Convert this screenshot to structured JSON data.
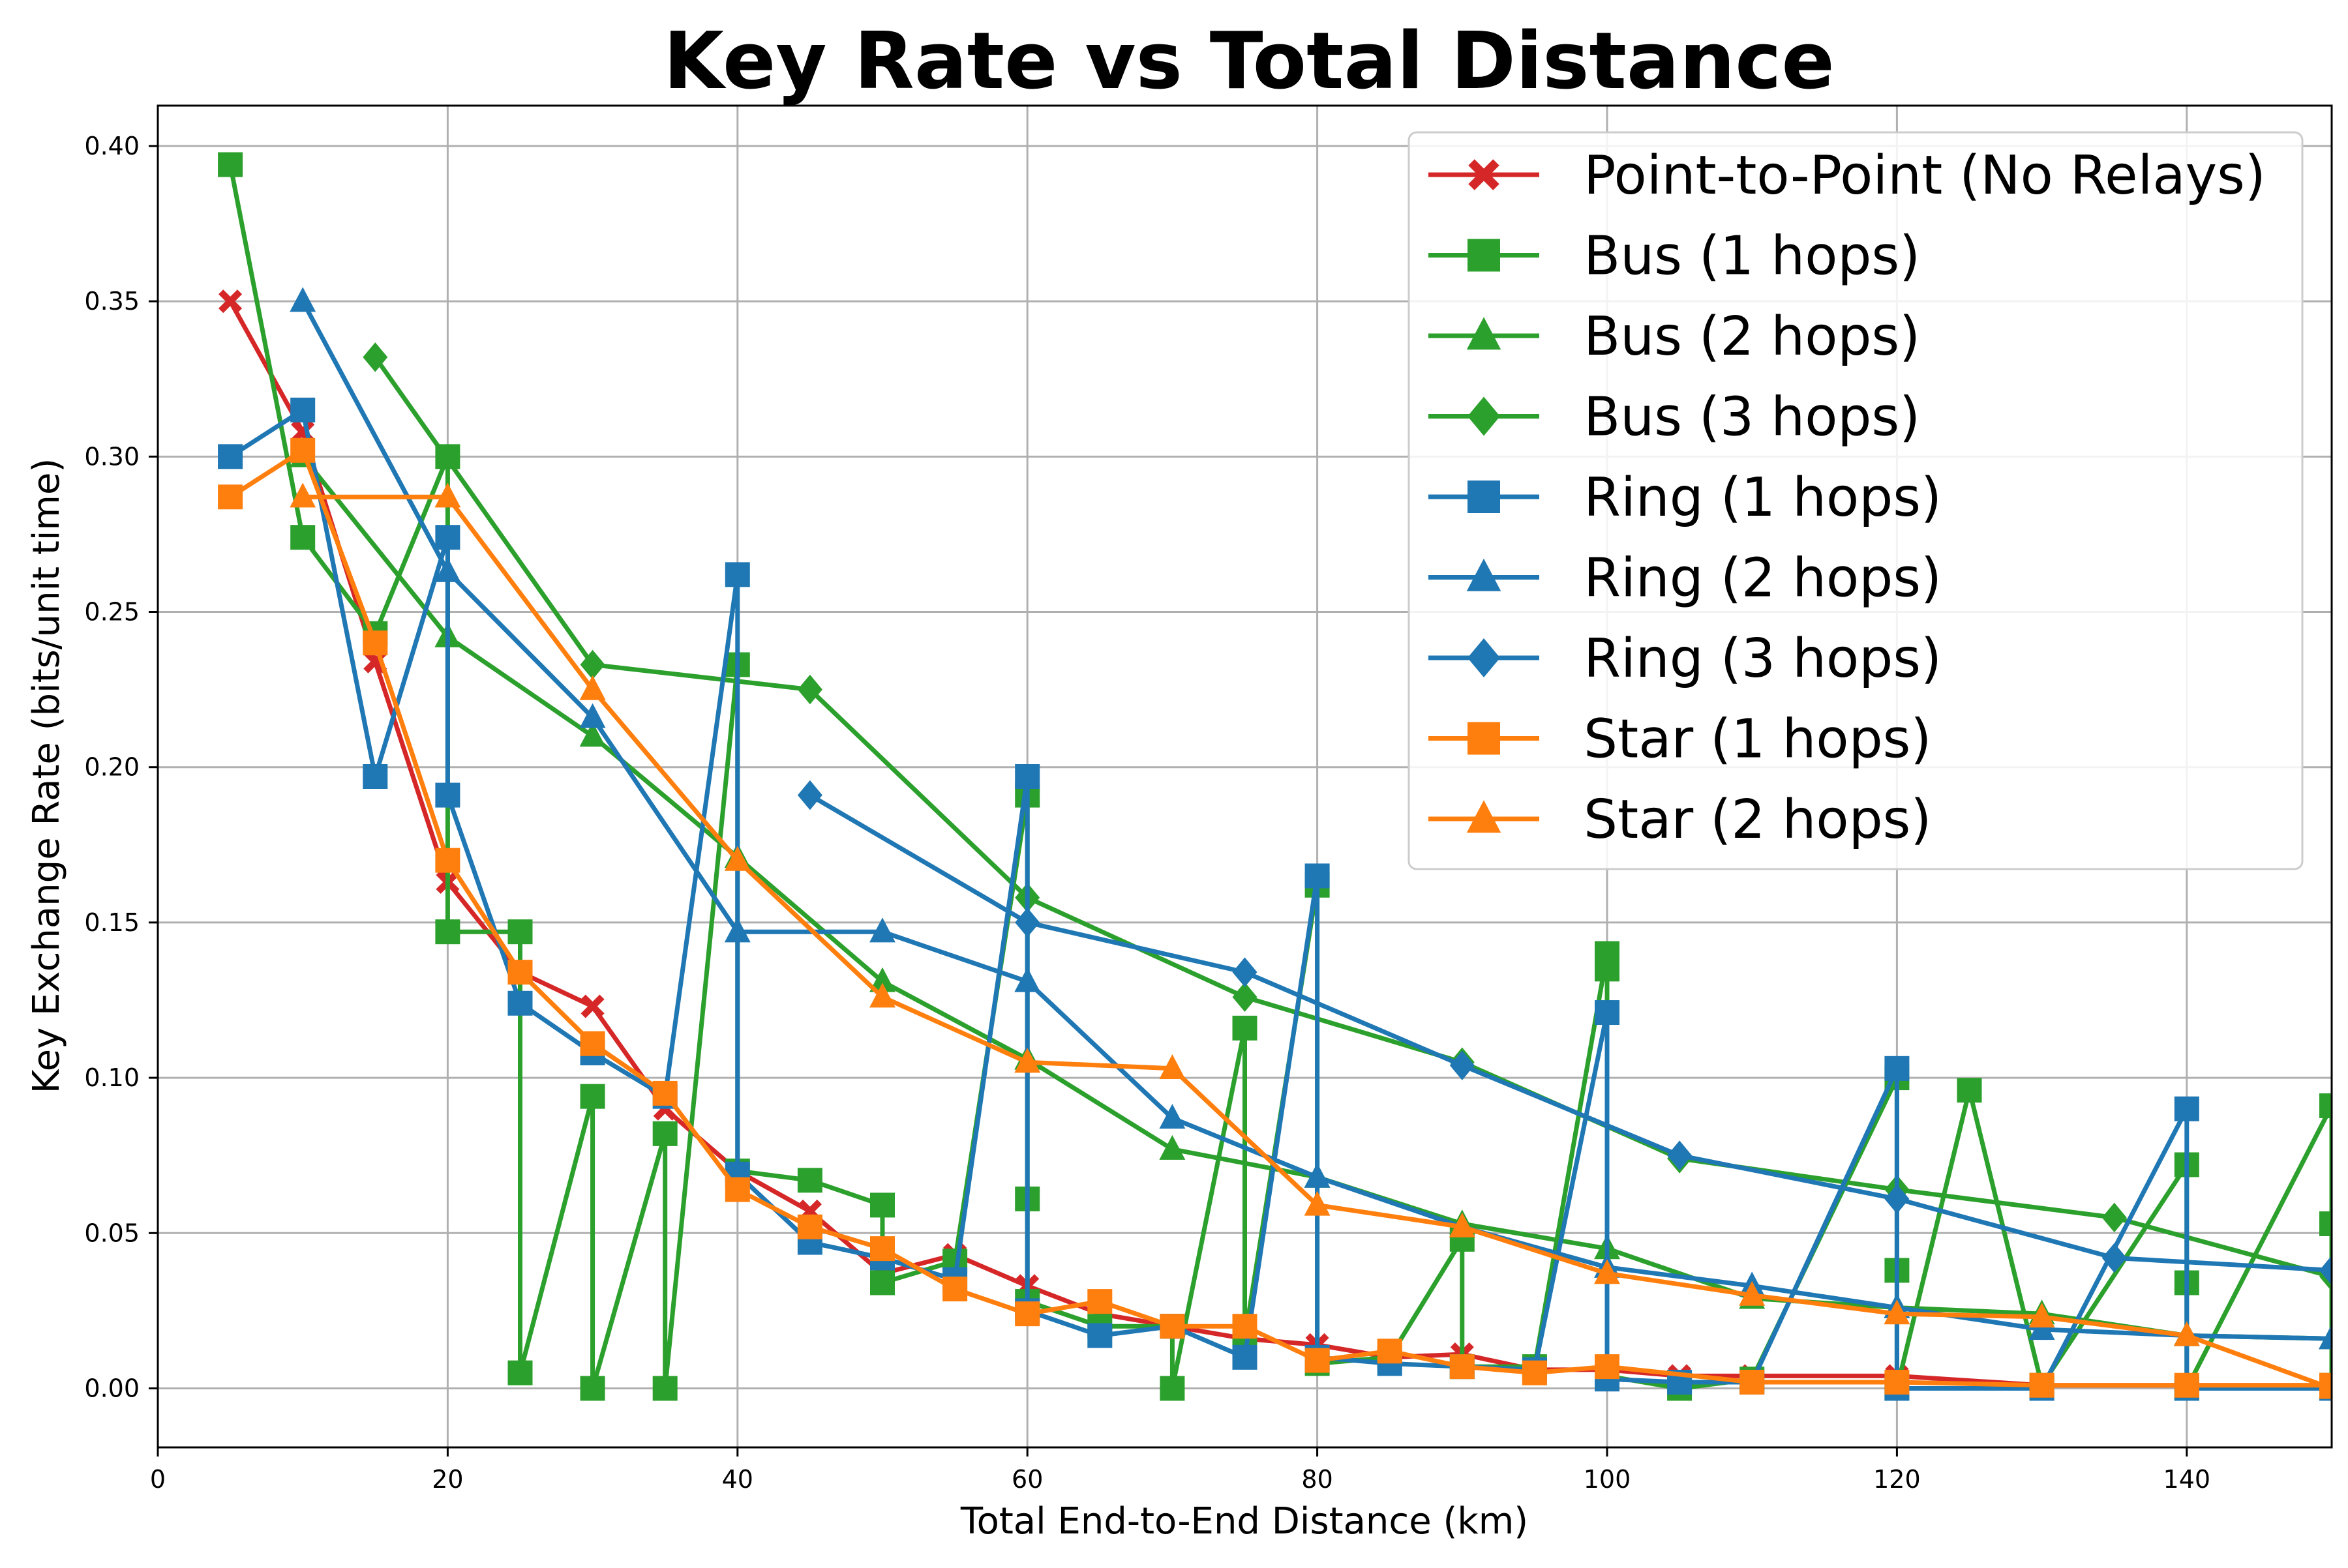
{
  "chart_data": {
    "type": "line",
    "title": "Key Rate vs Total Distance",
    "xlabel": "Total End-to-End Distance (km)",
    "ylabel": "Key Exchange Rate (bits/unit time)",
    "xlim": [
      0,
      150
    ],
    "ylim": [
      -0.019,
      0.413
    ],
    "xticks": [
      "0",
      "20",
      "40",
      "60",
      "80",
      "100",
      "120",
      "140"
    ],
    "xtick_values": [
      0,
      20,
      40,
      60,
      80,
      100,
      120,
      140
    ],
    "yticks": [
      "0.00",
      "0.05",
      "0.10",
      "0.15",
      "0.20",
      "0.25",
      "0.30",
      "0.35",
      "0.40"
    ],
    "ytick_values": [
      0.0,
      0.05,
      0.1,
      0.15,
      0.2,
      0.25,
      0.3,
      0.35,
      0.4
    ],
    "grid": true,
    "legend_position": "top-right",
    "series": [
      {
        "name": "Point-to-Point (No Relays)",
        "color": "#d62728",
        "marker": "x",
        "points": [
          [
            5,
            0.35
          ],
          [
            10,
            0.308
          ],
          [
            15,
            0.234
          ],
          [
            20,
            0.163
          ],
          [
            25,
            0.134
          ],
          [
            30,
            0.123
          ],
          [
            35,
            0.09
          ],
          [
            40,
            0.07
          ],
          [
            45,
            0.057
          ],
          [
            50,
            0.037
          ],
          [
            55,
            0.043
          ],
          [
            60,
            0.033
          ],
          [
            65,
            0.024
          ],
          [
            70,
            0.02
          ],
          [
            75,
            0.016
          ],
          [
            80,
            0.014
          ],
          [
            85,
            0.01
          ],
          [
            90,
            0.011
          ],
          [
            95,
            0.006
          ],
          [
            100,
            0.006
          ],
          [
            105,
            0.004
          ],
          [
            110,
            0.004
          ],
          [
            120,
            0.004
          ],
          [
            130,
            0.001
          ],
          [
            140,
            0.001
          ],
          [
            150,
            0.001
          ]
        ]
      },
      {
        "name": "Bus (1 hops)",
        "color": "#2ca02c",
        "marker": "s",
        "points": [
          [
            5,
            0.394
          ],
          [
            10,
            0.274
          ],
          [
            15,
            0.243
          ],
          [
            20,
            0.3
          ],
          [
            20,
            0.147
          ],
          [
            25,
            0.147
          ],
          [
            25,
            0.005
          ],
          [
            30,
            0.094
          ],
          [
            30,
            0.0
          ],
          [
            35,
            0.082
          ],
          [
            35,
            0.0
          ],
          [
            40,
            0.233
          ],
          [
            40,
            0.07
          ],
          [
            45,
            0.067
          ],
          [
            50,
            0.059
          ],
          [
            50,
            0.034
          ],
          [
            55,
            0.041
          ],
          [
            60,
            0.191
          ],
          [
            60,
            0.061
          ],
          [
            60,
            0.028
          ],
          [
            65,
            0.02
          ],
          [
            70,
            0.02
          ],
          [
            70,
            0.0
          ],
          [
            75,
            0.116
          ],
          [
            75,
            0.016
          ],
          [
            80,
            0.162
          ],
          [
            80,
            0.008
          ],
          [
            85,
            0.01
          ],
          [
            90,
            0.048
          ],
          [
            90,
            0.007
          ],
          [
            95,
            0.007
          ],
          [
            100,
            0.14
          ],
          [
            100,
            0.135
          ],
          [
            100,
            0.004
          ],
          [
            105,
            0.0
          ],
          [
            110,
            0.003
          ],
          [
            120,
            0.1
          ],
          [
            120,
            0.038
          ],
          [
            120,
            0.0
          ],
          [
            125,
            0.096
          ],
          [
            130,
            0.001
          ],
          [
            140,
            0.072
          ],
          [
            140,
            0.034
          ],
          [
            140,
            0.0
          ],
          [
            150,
            0.091
          ],
          [
            150,
            0.053
          ],
          [
            150,
            0.001
          ]
        ]
      },
      {
        "name": "Bus (2 hops)",
        "color": "#2ca02c",
        "marker": "^",
        "points": [
          [
            10,
            0.3
          ],
          [
            20,
            0.242
          ],
          [
            30,
            0.21
          ],
          [
            40,
            0.171
          ],
          [
            50,
            0.131
          ],
          [
            60,
            0.106
          ],
          [
            70,
            0.077
          ],
          [
            80,
            0.068
          ],
          [
            90,
            0.053
          ],
          [
            100,
            0.045
          ],
          [
            110,
            0.029
          ],
          [
            120,
            0.026
          ],
          [
            130,
            0.024
          ],
          [
            140,
            0.017
          ],
          [
            150,
            0.016
          ]
        ]
      },
      {
        "name": "Bus (3 hops)",
        "color": "#2ca02c",
        "marker": "D",
        "points": [
          [
            15,
            0.332
          ],
          [
            30,
            0.233
          ],
          [
            45,
            0.225
          ],
          [
            60,
            0.158
          ],
          [
            75,
            0.126
          ],
          [
            90,
            0.105
          ],
          [
            105,
            0.074
          ],
          [
            120,
            0.064
          ],
          [
            135,
            0.055
          ],
          [
            150,
            0.036
          ]
        ]
      },
      {
        "name": "Ring (1 hops)",
        "color": "#1f77b4",
        "marker": "s",
        "points": [
          [
            5,
            0.3
          ],
          [
            10,
            0.315
          ],
          [
            15,
            0.197
          ],
          [
            20,
            0.274
          ],
          [
            20,
            0.191
          ],
          [
            25,
            0.124
          ],
          [
            30,
            0.108
          ],
          [
            35,
            0.094
          ],
          [
            40,
            0.262
          ],
          [
            40,
            0.069
          ],
          [
            45,
            0.047
          ],
          [
            50,
            0.042
          ],
          [
            55,
            0.035
          ],
          [
            60,
            0.197
          ],
          [
            60,
            0.025
          ],
          [
            65,
            0.017
          ],
          [
            70,
            0.02
          ],
          [
            75,
            0.01
          ],
          [
            80,
            0.165
          ],
          [
            80,
            0.01
          ],
          [
            85,
            0.008
          ],
          [
            90,
            0.007
          ],
          [
            95,
            0.006
          ],
          [
            100,
            0.121
          ],
          [
            100,
            0.003
          ],
          [
            105,
            0.002
          ],
          [
            110,
            0.002
          ],
          [
            120,
            0.103
          ],
          [
            120,
            0.0
          ],
          [
            130,
            0.0
          ],
          [
            140,
            0.09
          ],
          [
            140,
            0.0
          ],
          [
            150,
            0.0
          ]
        ]
      },
      {
        "name": "Ring (2 hops)",
        "color": "#1f77b4",
        "marker": "^",
        "points": [
          [
            10,
            0.35
          ],
          [
            20,
            0.263
          ],
          [
            30,
            0.216
          ],
          [
            40,
            0.147
          ],
          [
            50,
            0.147
          ],
          [
            60,
            0.131
          ],
          [
            70,
            0.087
          ],
          [
            80,
            0.068
          ],
          [
            90,
            0.052
          ],
          [
            100,
            0.039
          ],
          [
            110,
            0.033
          ],
          [
            120,
            0.026
          ],
          [
            130,
            0.019
          ],
          [
            140,
            0.017
          ],
          [
            150,
            0.016
          ]
        ]
      },
      {
        "name": "Ring (3 hops)",
        "color": "#1f77b4",
        "marker": "D",
        "points": [
          [
            45,
            0.191
          ],
          [
            60,
            0.15
          ],
          [
            75,
            0.134
          ],
          [
            90,
            0.104
          ],
          [
            105,
            0.075
          ],
          [
            120,
            0.061
          ],
          [
            135,
            0.042
          ],
          [
            150,
            0.038
          ]
        ]
      },
      {
        "name": "Star (1 hops)",
        "color": "#ff7f0e",
        "marker": "s",
        "points": [
          [
            5,
            0.287
          ],
          [
            10,
            0.302
          ],
          [
            15,
            0.24
          ],
          [
            20,
            0.17
          ],
          [
            25,
            0.134
          ],
          [
            30,
            0.111
          ],
          [
            35,
            0.095
          ],
          [
            40,
            0.064
          ],
          [
            45,
            0.052
          ],
          [
            50,
            0.045
          ],
          [
            55,
            0.032
          ],
          [
            60,
            0.024
          ],
          [
            65,
            0.028
          ],
          [
            70,
            0.02
          ],
          [
            75,
            0.02
          ],
          [
            80,
            0.009
          ],
          [
            85,
            0.012
          ],
          [
            90,
            0.007
          ],
          [
            95,
            0.005
          ],
          [
            100,
            0.007
          ],
          [
            110,
            0.002
          ],
          [
            120,
            0.002
          ],
          [
            130,
            0.001
          ],
          [
            140,
            0.001
          ],
          [
            150,
            0.001
          ]
        ]
      },
      {
        "name": "Star (2 hops)",
        "color": "#ff7f0e",
        "marker": "^",
        "points": [
          [
            10,
            0.287
          ],
          [
            20,
            0.287
          ],
          [
            30,
            0.225
          ],
          [
            40,
            0.17
          ],
          [
            50,
            0.126
          ],
          [
            60,
            0.105
          ],
          [
            70,
            0.103
          ],
          [
            80,
            0.059
          ],
          [
            90,
            0.052
          ],
          [
            100,
            0.037
          ],
          [
            110,
            0.03
          ],
          [
            120,
            0.024
          ],
          [
            130,
            0.023
          ],
          [
            140,
            0.017
          ],
          [
            150,
            0.0
          ]
        ]
      }
    ]
  }
}
